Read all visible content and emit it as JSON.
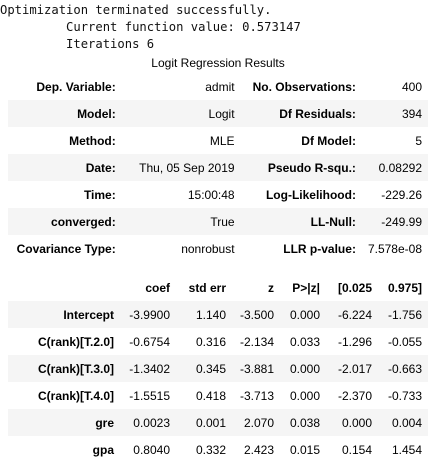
{
  "console": {
    "line1": "Optimization terminated successfully.",
    "line2": "         Current function value: 0.573147",
    "line3": "         Iterations 6"
  },
  "caption": "Logit Regression Results",
  "summary": [
    {
      "l1": "Dep. Variable:",
      "v1": "admit",
      "l2": "No. Observations:",
      "v2": "400"
    },
    {
      "l1": "Model:",
      "v1": "Logit",
      "l2": "Df Residuals:",
      "v2": "394"
    },
    {
      "l1": "Method:",
      "v1": "MLE",
      "l2": "Df Model:",
      "v2": "5"
    },
    {
      "l1": "Date:",
      "v1": "Thu, 05 Sep 2019",
      "l2": "Pseudo R-squ.:",
      "v2": "0.08292"
    },
    {
      "l1": "Time:",
      "v1": "15:00:48",
      "l2": "Log-Likelihood:",
      "v2": "-229.26"
    },
    {
      "l1": "converged:",
      "v1": "True",
      "l2": "LL-Null:",
      "v2": "-249.99"
    },
    {
      "l1": "Covariance Type:",
      "v1": "nonrobust",
      "l2": "LLR p-value:",
      "v2": "7.578e-08"
    }
  ],
  "coef_headers": [
    "",
    "coef",
    "std err",
    "z",
    "P>|z|",
    "[0.025",
    "0.975]"
  ],
  "coef_rows": [
    [
      "Intercept",
      "-3.9900",
      "1.140",
      "-3.500",
      "0.000",
      "-6.224",
      "-1.756"
    ],
    [
      "C(rank)[T.2.0]",
      "-0.6754",
      "0.316",
      "-2.134",
      "0.033",
      "-1.296",
      "-0.055"
    ],
    [
      "C(rank)[T.3.0]",
      "-1.3402",
      "0.345",
      "-3.881",
      "0.000",
      "-2.017",
      "-0.663"
    ],
    [
      "C(rank)[T.4.0]",
      "-1.5515",
      "0.418",
      "-3.713",
      "0.000",
      "-2.370",
      "-0.733"
    ],
    [
      "gre",
      "0.0023",
      "0.001",
      "2.070",
      "0.038",
      "0.000",
      "0.004"
    ],
    [
      "gpa",
      "0.8040",
      "0.332",
      "2.423",
      "0.015",
      "0.154",
      "1.454"
    ]
  ]
}
